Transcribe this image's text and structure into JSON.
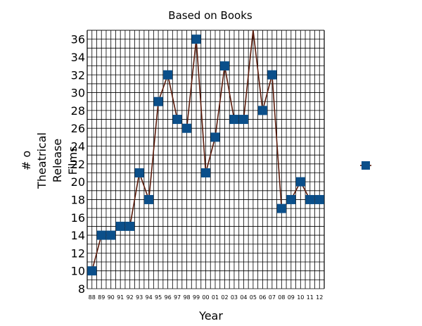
{
  "chart_data": {
    "type": "line",
    "title": "Based on Books",
    "xlabel": "Year",
    "ylabel_lines": [
      "# o",
      "Theatrical",
      "Release",
      "Films"
    ],
    "ylim": [
      8,
      37
    ],
    "yticks": [
      8,
      10,
      12,
      14,
      16,
      18,
      20,
      22,
      24,
      26,
      28,
      30,
      32,
      34,
      36
    ],
    "grid": true,
    "categories": [
      "88",
      "89",
      "90",
      "91",
      "92",
      "93",
      "94",
      "95",
      "96",
      "97",
      "98",
      "99",
      "00",
      "01",
      "02",
      "03",
      "04",
      "05",
      "06",
      "07",
      "08",
      "09",
      "10",
      "11",
      "12"
    ],
    "series": [
      {
        "values": [
          10,
          14,
          14,
          15,
          15,
          21,
          18,
          29,
          32,
          27,
          26,
          36,
          21,
          25,
          33,
          27,
          27,
          37,
          28,
          32,
          17,
          18,
          20,
          18,
          18
        ],
        "line_color": "#5a1a0a",
        "marker_color": "#0b4f8a"
      }
    ],
    "legend": {
      "position": "right",
      "entries": [
        {
          "marker_color": "#0b4f8a",
          "label": ""
        }
      ]
    }
  }
}
